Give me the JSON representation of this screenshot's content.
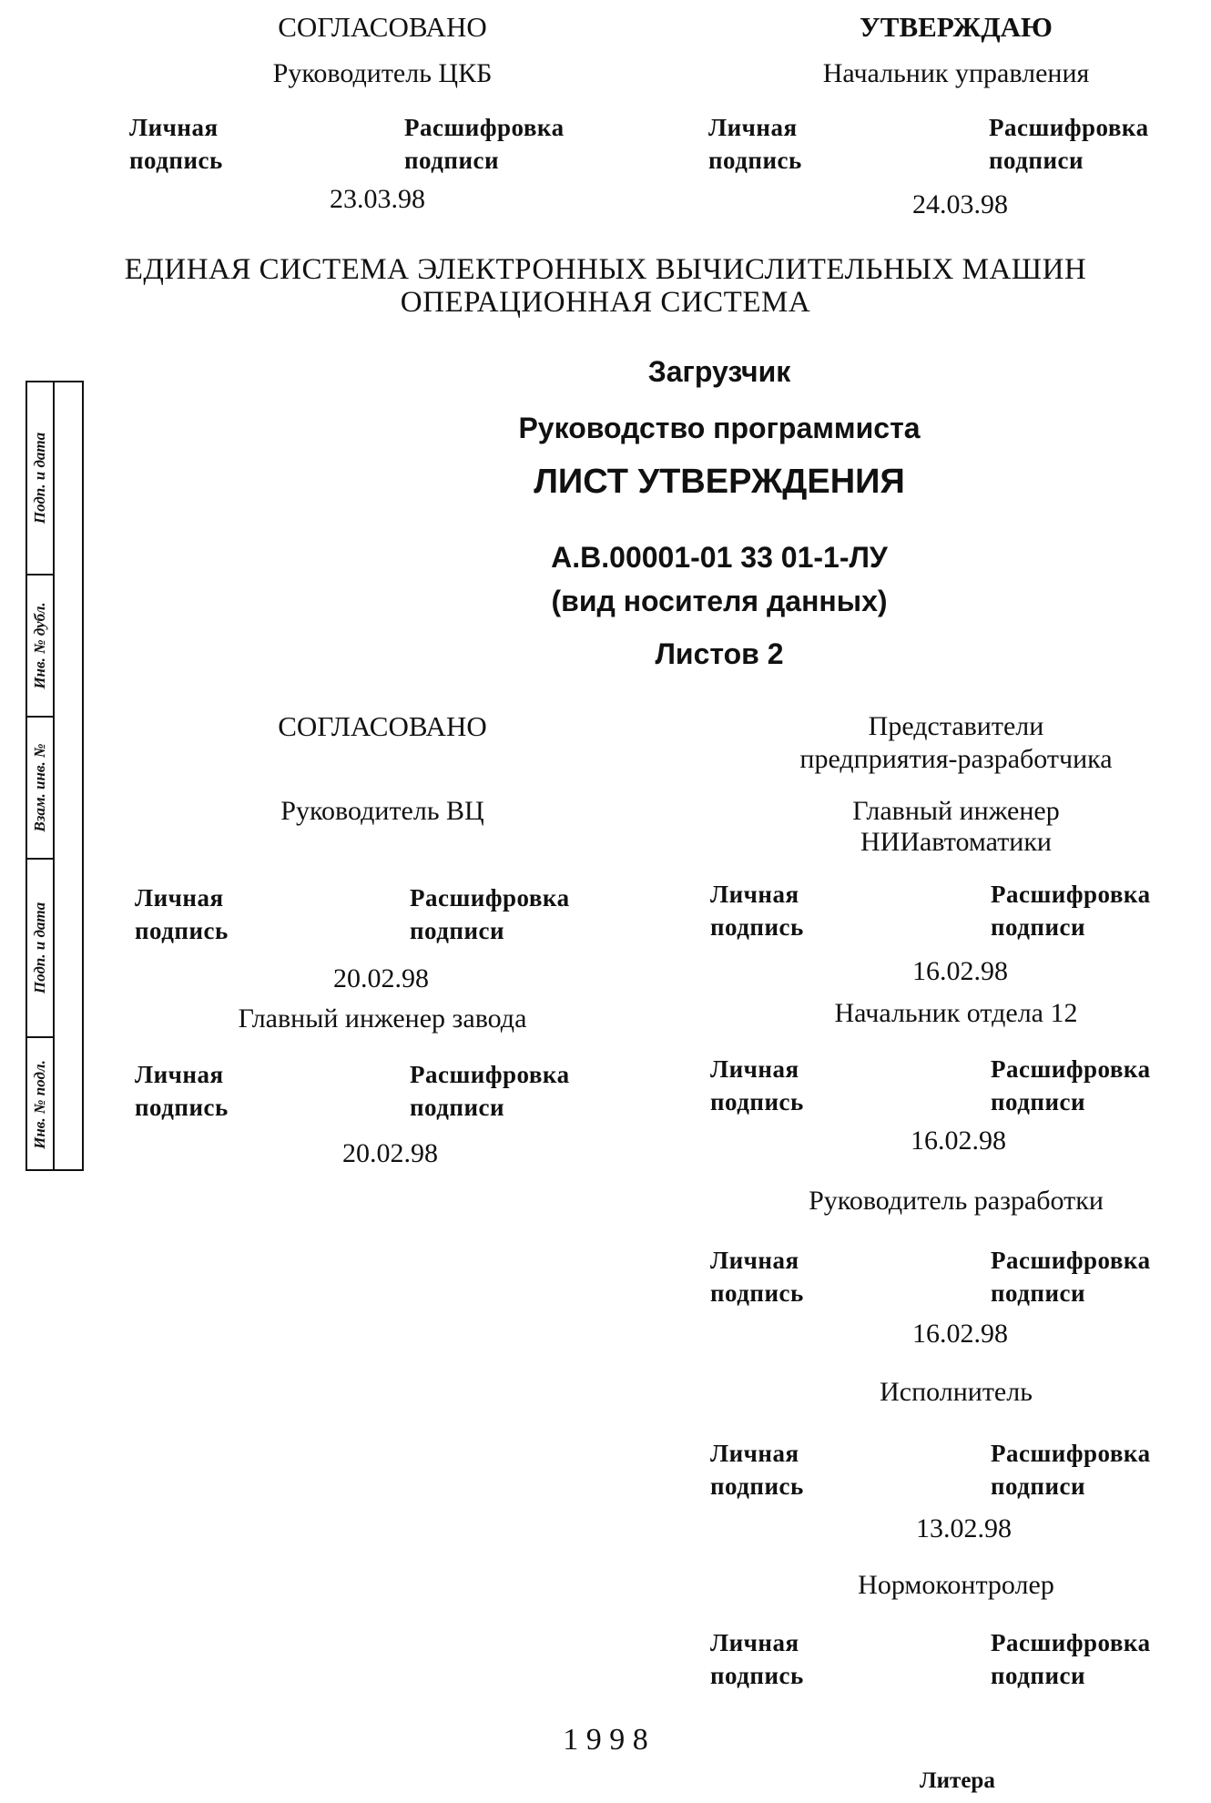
{
  "top_left": {
    "heading": "СОГЛАСОВАНО",
    "role": "Руководитель ЦКБ",
    "sig_label": "Личная\nподпись",
    "decode_label": "Расшифровка\nподписи",
    "date": "23.03.98"
  },
  "top_right": {
    "heading": "УТВЕРЖДАЮ",
    "role": "Начальник управления",
    "sig_label": "Личная\nподпись",
    "decode_label": "Расшифровка\nподписи",
    "date": "24.03.98"
  },
  "system_line1": "ЕДИНАЯ СИСТЕМА ЭЛЕКТРОННЫХ ВЫЧИСЛИТЕЛЬНЫХ МАШИН",
  "system_line2": "ОПЕРАЦИОННАЯ СИСТЕМА",
  "doc_name": "Загрузчик",
  "doc_type": "Руководство программиста",
  "sheet_title": "ЛИСТ УТВЕРЖДЕНИЯ",
  "doc_code": "А.В.00001-01 33 01-1-ЛУ",
  "media_type": "(вид носителя данных)",
  "sheets": "Листов 2",
  "margin_table": [
    "Подп. и дата",
    "Инв. № дубл.",
    "Взам. инв. №",
    "Подп. и дата",
    "Инв. № подл."
  ],
  "left_block": {
    "heading": "СОГЛАСОВАНО",
    "entries": [
      {
        "role": "Руководитель ВЦ",
        "sig_label": "Личная\nподпись",
        "decode_label": "Расшифровка\nподписи",
        "date": "20.02.98"
      },
      {
        "role": "Главный инженер завода",
        "sig_label": "Личная\nподпись",
        "decode_label": "Расшифровка\nподписи",
        "date": "20.02.98"
      }
    ]
  },
  "right_block": {
    "heading": "Представители\nпредприятия-разработчика",
    "entries": [
      {
        "role": "Главный инженер\nНИИавтоматики",
        "sig_label": "Личная\nподпись",
        "decode_label": "Расшифровка\nподписи",
        "date": "16.02.98"
      },
      {
        "role": "Начальник отдела 12",
        "sig_label": "Личная\nподпись",
        "decode_label": "Расшифровка\nподписи",
        "date": "16.02.98"
      },
      {
        "role": "Руководитель разработки",
        "sig_label": "Личная\nподпись",
        "decode_label": "Расшифровка\nподписи",
        "date": "16.02.98"
      },
      {
        "role": "Исполнитель",
        "sig_label": "Личная\nподпись",
        "decode_label": "Расшифровка\nподписи",
        "date": "13.02.98"
      },
      {
        "role": "Нормоконтролер",
        "sig_label": "Личная\nподпись",
        "decode_label": "Расшифровка\nподписи"
      }
    ]
  },
  "year": "1 9 9 8",
  "litera": "Литера"
}
